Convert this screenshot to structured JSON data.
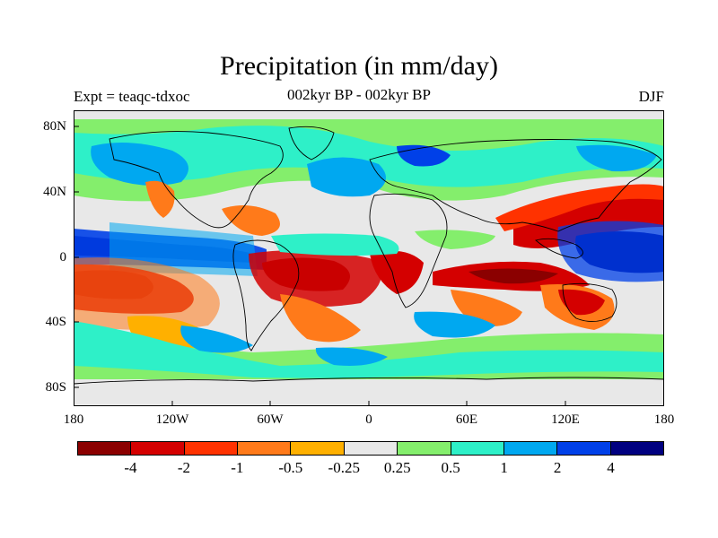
{
  "title": "Precipitation (in mm/day)",
  "subtitle_left": "Expt = teaqc-tdxoc",
  "subtitle_center": "002kyr BP - 002kyr BP",
  "subtitle_right": "DJF",
  "lat_labels": [
    "80N",
    "40N",
    "0",
    "40S",
    "80S"
  ],
  "lon_labels": [
    "180",
    "120W",
    "60W",
    "0",
    "60E",
    "120E",
    "180"
  ],
  "colorbar": {
    "colors": [
      "#8b0000",
      "#d40000",
      "#ff3200",
      "#ff7a1a",
      "#ffb000",
      "#e8e8e8",
      "#84ee6c",
      "#2ef0c8",
      "#00a8f0",
      "#0040e8",
      "#000080"
    ],
    "labels": [
      "-4",
      "-2",
      "-1",
      "-0.5",
      "-0.25",
      "0.25",
      "0.5",
      "1",
      "2",
      "4"
    ]
  },
  "colors": {
    "background": "#e8e8e8",
    "coastline": "#000000"
  }
}
